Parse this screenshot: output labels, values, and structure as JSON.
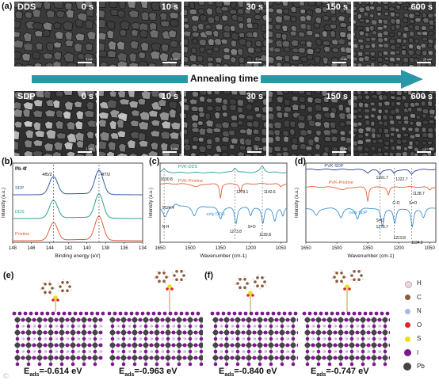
{
  "panel_a": {
    "letter": "(a)",
    "rows": [
      {
        "sample": "DDS",
        "times": [
          "0 s",
          "10 s",
          "30 s",
          "150 s",
          "600 s"
        ]
      },
      {
        "sample": "SDP",
        "times": [
          "0 s",
          "10 s",
          "30 s",
          "150 s",
          "600 s"
        ]
      }
    ],
    "scale_bar": "1 um",
    "arrow_label": "Annealing time",
    "arrow_color": "#2a97a8"
  },
  "panel_b": {
    "letter": "(b)",
    "element": "Pb 4f",
    "peak_labels": [
      "4f5/2",
      "4f7/2"
    ],
    "series": [
      "SDP",
      "DDS",
      "Pristine"
    ],
    "series_colors": [
      "#2d5fa8",
      "#2aa08a",
      "#e0603a"
    ],
    "xlabel": "Binding energy (eV)",
    "ylabel": "Intensity (a.u.)",
    "xticks": [
      "148",
      "146",
      "144",
      "142",
      "140",
      "138",
      "136",
      "134"
    ]
  },
  "panel_c": {
    "letter": "(c)",
    "series": [
      "PVK-DDS",
      "PVK-Pristine",
      "only DDS"
    ],
    "series_colors": [
      "#2aa08a",
      "#e0603a",
      "#3d8fd0"
    ],
    "annotations": [
      "1630.8",
      "1278.1",
      "1142.6",
      "1624.4",
      "N-H",
      "1273.8",
      "S=O",
      "1139.8"
    ],
    "xlabel": "Wavenumber (cm-1)",
    "ylabel": "Intensity (a.u.)",
    "xticks": [
      "1650",
      "1500",
      "1350",
      "1200",
      "1050"
    ]
  },
  "panel_d": {
    "letter": "(d)",
    "series": [
      "PVK-SDP",
      "PVK-Pristine",
      "only SDP"
    ],
    "series_colors": [
      "#2d3f8f",
      "#e0603a",
      "#3d8fd0"
    ],
    "annotations": [
      "1291.7",
      "1222.7",
      "1138.7",
      "C-O",
      "S=O",
      "S=O",
      "1279.7",
      "1219.8",
      "1134.2"
    ],
    "xlabel": "Wavenumber (cm-1)",
    "ylabel": "Intensity (a.u.)",
    "xticks": [
      "1650",
      "1500",
      "1350",
      "1200",
      "1050"
    ]
  },
  "panel_e": {
    "letter": "(e)",
    "eads": [
      "-0.614 eV",
      "-0.963 eV"
    ]
  },
  "panel_f": {
    "letter": "(f)",
    "eads": [
      "-0.840 eV",
      "-0.747 eV"
    ]
  },
  "eads_prefix": "E",
  "eads_sub": "ads",
  "legend": [
    {
      "label": "H",
      "color": "#f0d6e4"
    },
    {
      "label": "C",
      "color": "#8a5a3a"
    },
    {
      "label": "N",
      "color": "#a8b8e0"
    },
    {
      "label": "O",
      "color": "#e0242a"
    },
    {
      "label": "S",
      "color": "#e8e020"
    },
    {
      "label": "I",
      "color": "#7a1a8a"
    },
    {
      "label": "Pb",
      "color": "#444444"
    }
  ],
  "watermark": "©"
}
